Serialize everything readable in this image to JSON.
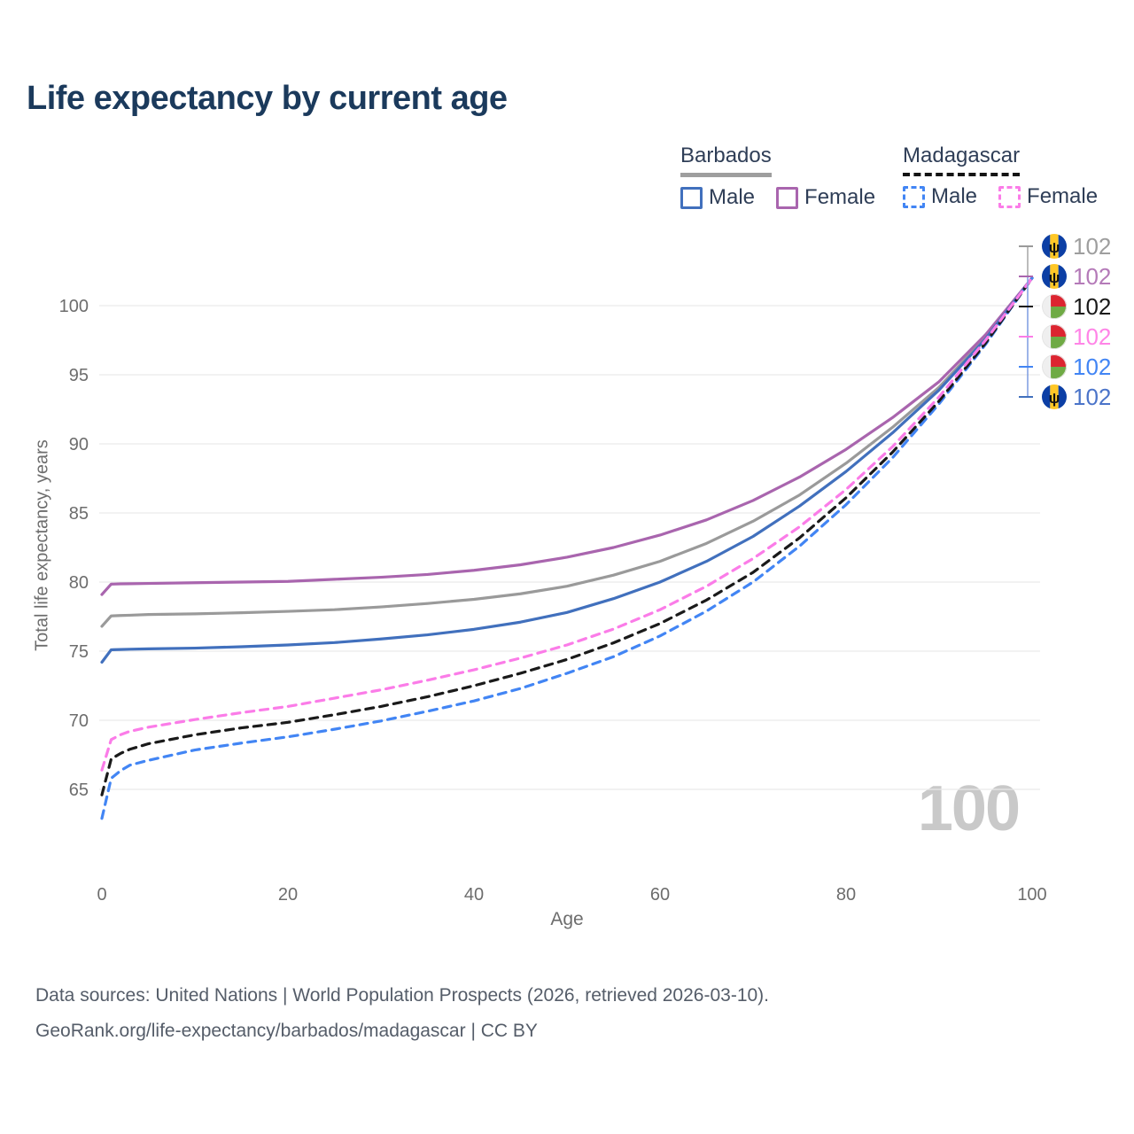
{
  "title": "Life expectancy by current age",
  "legend": {
    "barbados": {
      "label": "Barbados",
      "male_label": "Male",
      "female_label": "Female",
      "male_color": "#4170bd",
      "female_color": "#a965ae",
      "underline_color": "#9e9e9e",
      "dashed": false
    },
    "madagascar": {
      "label": "Madagascar",
      "male_label": "Male",
      "female_label": "Female",
      "male_color": "#4285f4",
      "female_color": "#fb7ce8",
      "underline_color": "#141414",
      "dashed": true
    }
  },
  "axes": {
    "x_label": "Age",
    "y_label": "Total life expectancy, years"
  },
  "watermark": "100",
  "footer": {
    "line1": "Data sources: United Nations | World Population Prospects (2026, retrieved 2026-03-10).",
    "line2": "GeoRank.org/life-expectancy/barbados/madagascar | CC BY"
  },
  "chart_data": {
    "type": "line",
    "title": "Life expectancy by current age",
    "xlabel": "Age",
    "ylabel": "Total life expectancy, years",
    "xlim": [
      0,
      100
    ],
    "ylim": [
      62,
      103
    ],
    "x_ticks": [
      0,
      20,
      40,
      60,
      80,
      100
    ],
    "y_ticks": [
      65,
      70,
      75,
      80,
      85,
      90,
      95,
      100
    ],
    "grid": "horizontal",
    "legend_position": "top-right",
    "x": [
      0,
      1,
      2,
      3,
      5,
      10,
      15,
      20,
      25,
      30,
      35,
      40,
      45,
      50,
      55,
      60,
      65,
      70,
      75,
      80,
      85,
      90,
      95,
      100
    ],
    "series": [
      {
        "id": "barbados-total",
        "name": "Barbados (both sexes)",
        "country": "Barbados",
        "sex": "both",
        "color": "#9a9a9a",
        "dashed": false,
        "values": [
          76.8,
          77.55,
          77.58,
          77.6,
          77.65,
          77.7,
          77.78,
          77.88,
          78.0,
          78.2,
          78.45,
          78.75,
          79.15,
          79.7,
          80.5,
          81.5,
          82.8,
          84.4,
          86.3,
          88.6,
          91.2,
          94.1,
          97.7,
          102
        ]
      },
      {
        "id": "barbados-female",
        "name": "Barbados Female",
        "country": "Barbados",
        "sex": "female",
        "color": "#a965ae",
        "dashed": false,
        "values": [
          79.1,
          79.85,
          79.87,
          79.88,
          79.9,
          79.95,
          80.0,
          80.05,
          80.2,
          80.35,
          80.55,
          80.85,
          81.25,
          81.8,
          82.5,
          83.4,
          84.5,
          85.9,
          87.6,
          89.6,
          91.9,
          94.5,
          97.9,
          102
        ]
      },
      {
        "id": "barbados-male",
        "name": "Barbados Male",
        "country": "Barbados",
        "sex": "male",
        "color": "#4170bd",
        "dashed": false,
        "values": [
          74.2,
          75.1,
          75.12,
          75.14,
          75.17,
          75.22,
          75.32,
          75.45,
          75.62,
          75.88,
          76.18,
          76.58,
          77.1,
          77.8,
          78.8,
          80.0,
          81.5,
          83.3,
          85.5,
          88.0,
          90.8,
          93.9,
          97.6,
          102
        ]
      },
      {
        "id": "madagascar-male",
        "name": "Madagascar Male",
        "country": "Madagascar",
        "sex": "male",
        "color": "#4285f4",
        "dashed": true,
        "values": [
          62.9,
          65.8,
          66.35,
          66.75,
          67.1,
          67.85,
          68.35,
          68.8,
          69.35,
          69.95,
          70.65,
          71.4,
          72.3,
          73.4,
          74.6,
          76.1,
          77.9,
          80.0,
          82.6,
          85.6,
          89.0,
          92.9,
          97.2,
          102
        ]
      },
      {
        "id": "madagascar-total",
        "name": "Madagascar (both sexes)",
        "country": "Madagascar",
        "sex": "both",
        "color": "#1a1a1a",
        "dashed": true,
        "values": [
          64.6,
          67.2,
          67.6,
          67.9,
          68.3,
          68.95,
          69.45,
          69.85,
          70.4,
          71.0,
          71.7,
          72.5,
          73.4,
          74.4,
          75.6,
          77.0,
          78.7,
          80.7,
          83.2,
          86.1,
          89.4,
          93.1,
          97.3,
          102
        ]
      },
      {
        "id": "madagascar-female",
        "name": "Madagascar Female",
        "country": "Madagascar",
        "sex": "female",
        "color": "#fb7ce8",
        "dashed": true,
        "values": [
          66.4,
          68.6,
          68.95,
          69.2,
          69.5,
          70.05,
          70.55,
          71.0,
          71.6,
          72.2,
          72.9,
          73.65,
          74.5,
          75.45,
          76.6,
          78.0,
          79.7,
          81.7,
          84.0,
          86.7,
          89.8,
          93.4,
          97.5,
          102
        ]
      }
    ],
    "end_labels": [
      {
        "flag": "barbados",
        "value": "102",
        "color": "#9e9e9e",
        "stub": "#9a9a9a"
      },
      {
        "flag": "barbados",
        "value": "102",
        "color": "#b47ab8",
        "stub": "#a965ae"
      },
      {
        "flag": "madagascar",
        "value": "102",
        "color": "#1a1a1a",
        "stub": "#1a1a1a"
      },
      {
        "flag": "madagascar",
        "value": "102",
        "color": "#ff85e7",
        "stub": "#fb7ce8"
      },
      {
        "flag": "madagascar",
        "value": "102",
        "color": "#4285f4",
        "stub": "#4285f4"
      },
      {
        "flag": "barbados",
        "value": "102",
        "color": "#4b74c9",
        "stub": "#4170bd"
      }
    ]
  }
}
